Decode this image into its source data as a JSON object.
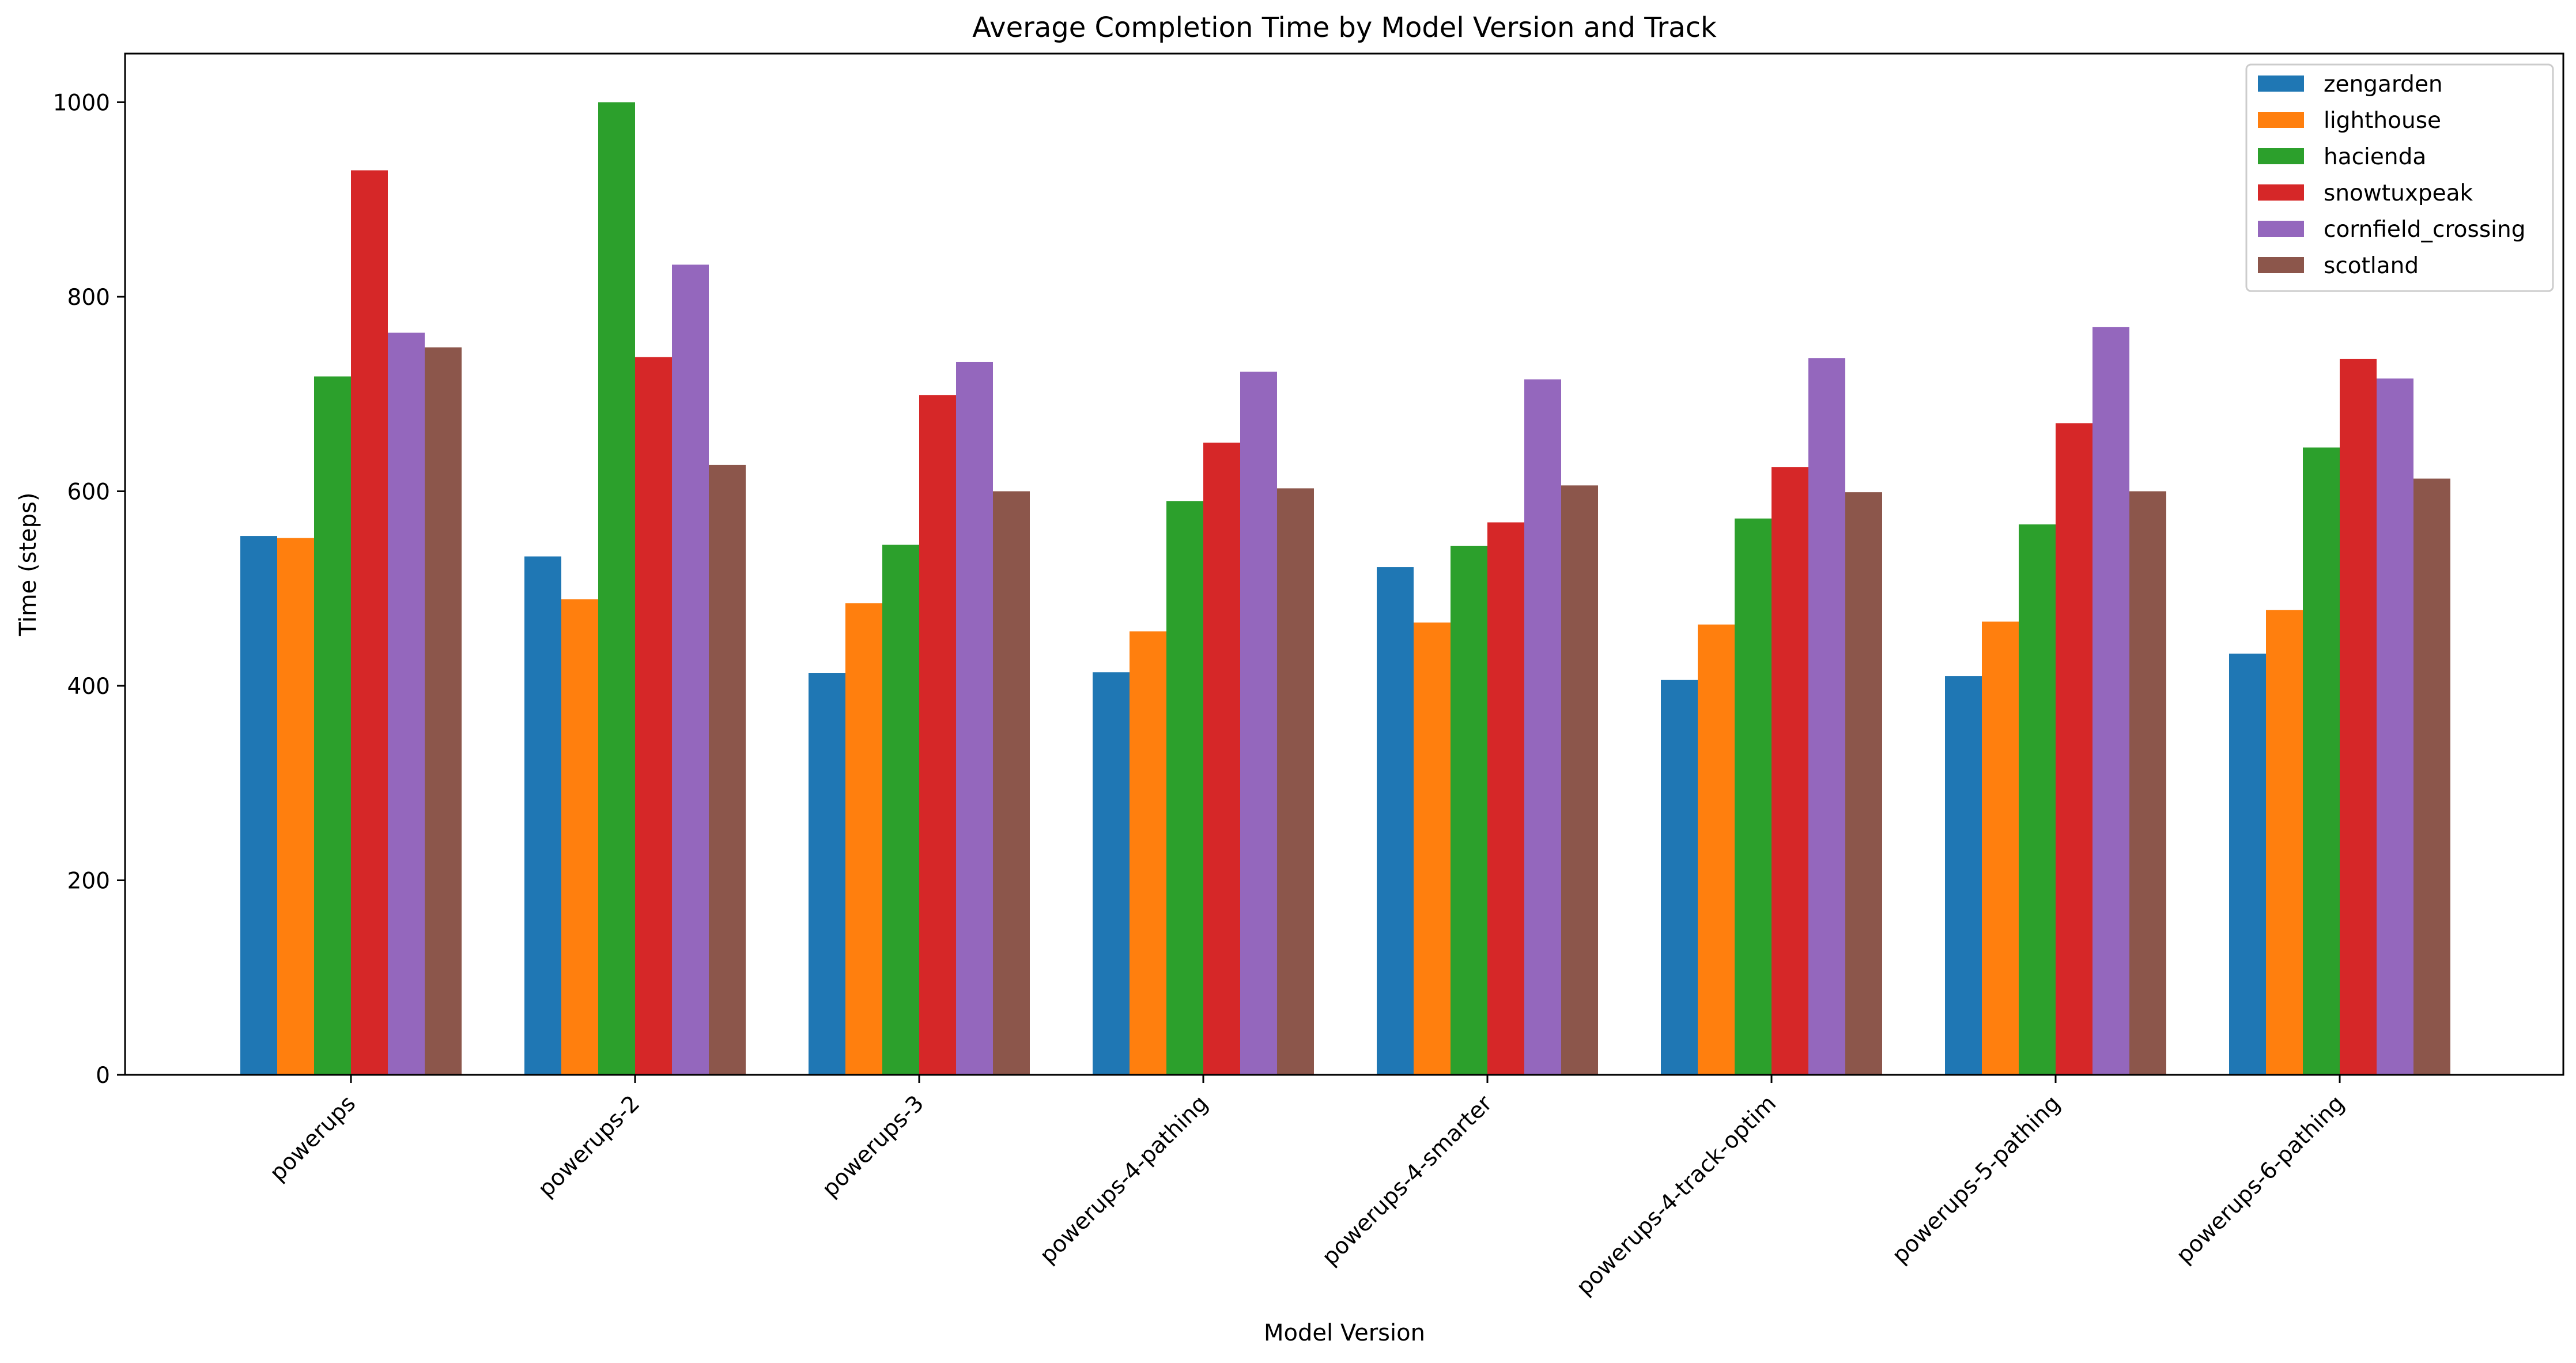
{
  "chart_data": {
    "type": "bar",
    "title": "Average Completion Time by Model Version and Track",
    "xlabel": "Model Version",
    "ylabel": "Time (steps)",
    "ylim": [
      0,
      1050
    ],
    "yticks": [
      0,
      200,
      400,
      600,
      800,
      1000
    ],
    "grid": false,
    "legend_position": "top-right",
    "categories": [
      "powerups",
      "powerups-2",
      "powerups-3",
      "powerups-4-pathing",
      "powerups-4-smarter",
      "powerups-4-track-optim",
      "powerups-5-pathing",
      "powerups-6-pathing"
    ],
    "series": [
      {
        "name": "zengarden",
        "color": "#1f77b4",
        "values": [
          554,
          533,
          413,
          414,
          522,
          406,
          410,
          433
        ]
      },
      {
        "name": "lighthouse",
        "color": "#ff7f0e",
        "values": [
          552,
          489,
          485,
          456,
          465,
          463,
          466,
          478
        ]
      },
      {
        "name": "hacienda",
        "color": "#2ca02c",
        "values": [
          718,
          1000,
          545,
          590,
          544,
          572,
          566,
          645
        ]
      },
      {
        "name": "snowtuxpeak",
        "color": "#d62728",
        "values": [
          930,
          738,
          699,
          650,
          568,
          625,
          670,
          736
        ]
      },
      {
        "name": "cornfield_crossing",
        "color": "#9467bd",
        "values": [
          763,
          833,
          733,
          723,
          715,
          737,
          769,
          716
        ]
      },
      {
        "name": "scotland",
        "color": "#8c564b",
        "values": [
          748,
          627,
          600,
          603,
          606,
          599,
          600,
          613
        ]
      }
    ]
  }
}
